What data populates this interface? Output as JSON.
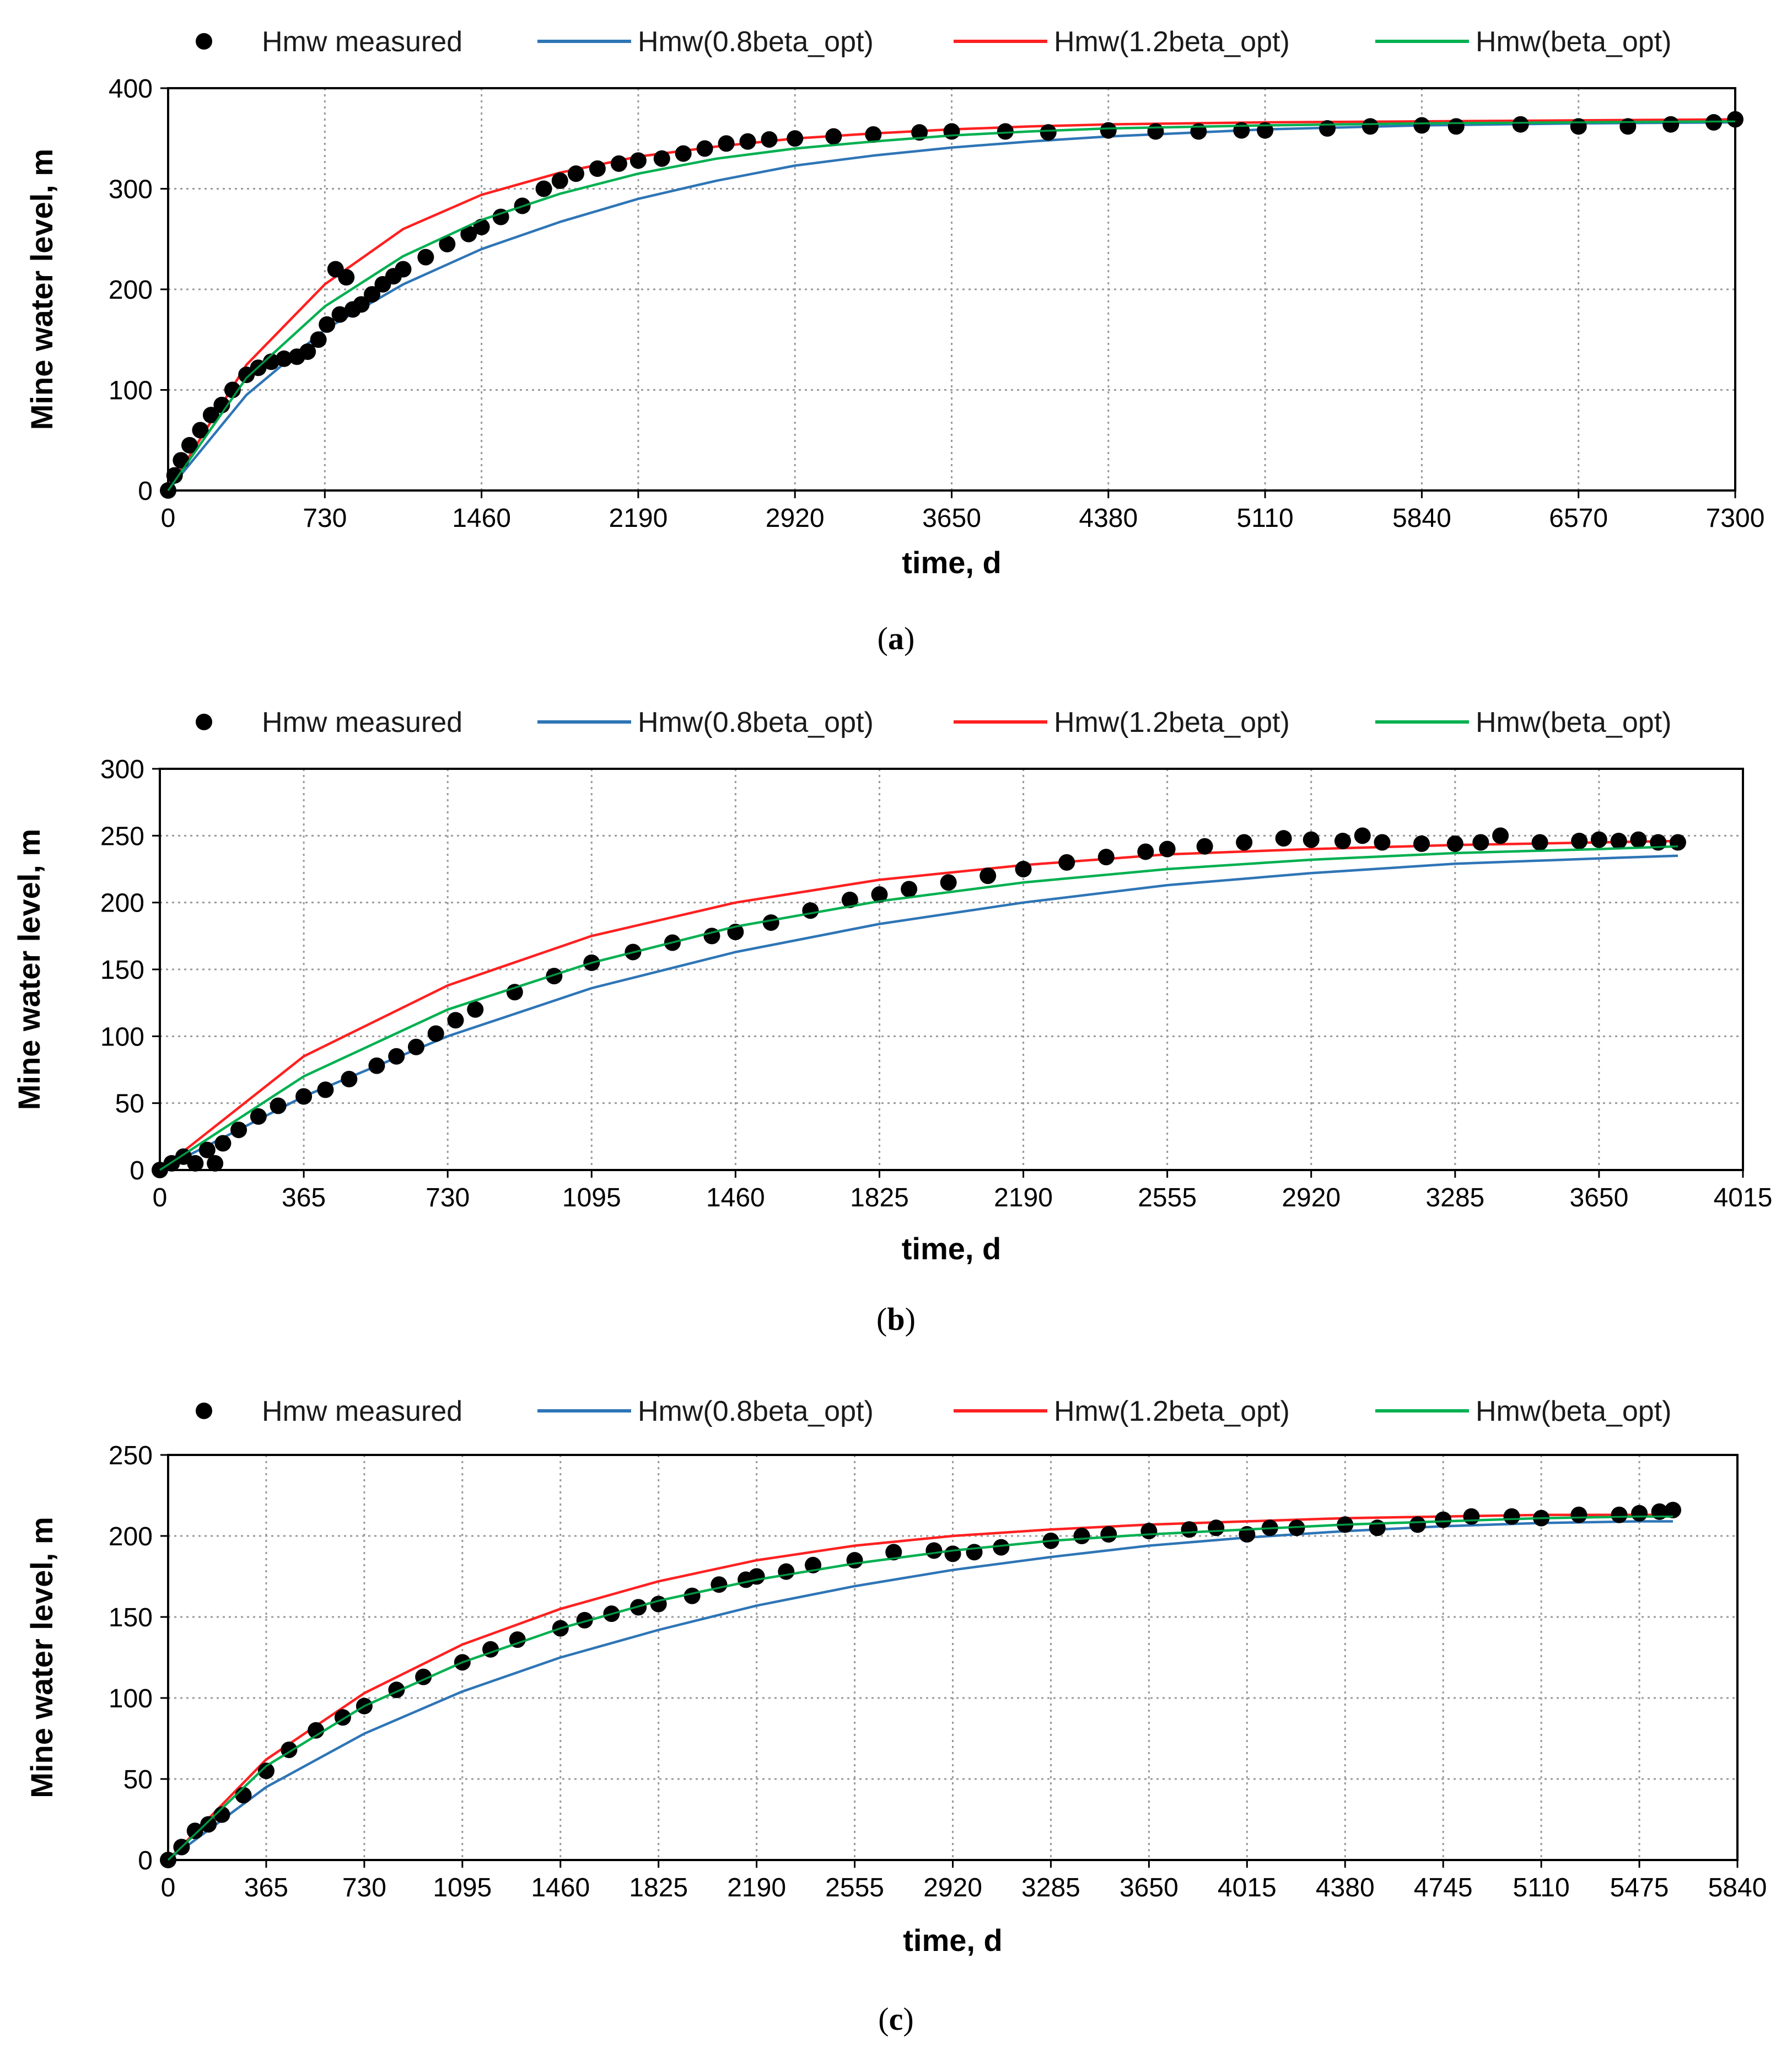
{
  "chart_data": [
    {
      "id": "a",
      "type": "line",
      "caption": "a",
      "xlabel": "time, d",
      "ylabel": "Mine water level, m",
      "xlim": [
        0,
        7300
      ],
      "ylim": [
        0,
        400
      ],
      "xticks": [
        0,
        730,
        1460,
        2190,
        2920,
        3650,
        4380,
        5110,
        5840,
        6570,
        7300
      ],
      "yticks": [
        0,
        100,
        200,
        300,
        400
      ],
      "legend": [
        "Hmw measured",
        "Hmw(0.8beta_opt)",
        "Hmw(1.2beta_opt)",
        "Hmw(beta_opt)"
      ],
      "series": [
        {
          "name": "Hmw(0.8beta_opt)",
          "color": "#2e75b6",
          "x": [
            0,
            365,
            730,
            1095,
            1460,
            1825,
            2190,
            2555,
            2920,
            3285,
            3650,
            4015,
            4380,
            5110,
            5840,
            6570,
            7300
          ],
          "y": [
            0,
            95,
            160,
            205,
            240,
            267,
            290,
            308,
            323,
            333,
            341,
            347,
            352,
            359,
            363,
            365,
            366
          ]
        },
        {
          "name": "Hmw(1.2beta_opt)",
          "color": "#ff2020",
          "x": [
            0,
            365,
            730,
            1095,
            1460,
            1825,
            2190,
            2555,
            2920,
            3285,
            3650,
            4015,
            4380,
            5110,
            5840,
            6570,
            7300
          ],
          "y": [
            0,
            125,
            205,
            260,
            294,
            316,
            332,
            342,
            350,
            355,
            359,
            362,
            364,
            366,
            367,
            368,
            369
          ]
        },
        {
          "name": "Hmw(beta_opt)",
          "color": "#00b050",
          "x": [
            0,
            365,
            730,
            1095,
            1460,
            1825,
            2190,
            2555,
            2920,
            3285,
            3650,
            4015,
            4380,
            5110,
            5840,
            6570,
            7300
          ],
          "y": [
            0,
            112,
            183,
            233,
            269,
            295,
            315,
            330,
            340,
            347,
            353,
            357,
            360,
            363,
            365,
            366,
            367
          ]
        }
      ],
      "measured": {
        "name": "Hmw measured",
        "color": "#000000",
        "x": [
          0,
          30,
          60,
          100,
          150,
          200,
          250,
          300,
          365,
          420,
          480,
          540,
          600,
          650,
          700,
          740,
          780,
          800,
          830,
          860,
          900,
          950,
          1000,
          1050,
          1095,
          1200,
          1300,
          1400,
          1460,
          1550,
          1650,
          1750,
          1825,
          1900,
          2000,
          2100,
          2190,
          2300,
          2400,
          2500,
          2600,
          2700,
          2800,
          2920,
          3100,
          3285,
          3500,
          3650,
          3900,
          4100,
          4380,
          4600,
          4800,
          5000,
          5110,
          5400,
          5600,
          5840,
          6000,
          6300,
          6570,
          6800,
          7000,
          7200,
          7300
        ],
        "y": [
          0,
          15,
          30,
          45,
          60,
          75,
          85,
          100,
          115,
          122,
          128,
          131,
          133,
          138,
          150,
          165,
          220,
          175,
          212,
          180,
          185,
          195,
          205,
          213,
          220,
          232,
          245,
          255,
          262,
          272,
          283,
          300,
          308,
          315,
          320,
          325,
          328,
          330,
          335,
          340,
          345,
          347,
          349,
          350,
          352,
          354,
          356,
          357,
          357,
          356,
          358,
          357,
          357,
          358,
          358,
          360,
          362,
          363,
          362,
          364,
          362,
          362,
          364,
          366,
          369
        ]
      }
    },
    {
      "id": "b",
      "type": "line",
      "caption": "b",
      "xlabel": "time, d",
      "ylabel": "Mine water level, m",
      "xlim": [
        0,
        4015
      ],
      "ylim": [
        0,
        300
      ],
      "xticks": [
        0,
        365,
        730,
        1095,
        1460,
        1825,
        2190,
        2555,
        2920,
        3285,
        3650,
        4015
      ],
      "yticks": [
        0,
        50,
        100,
        150,
        200,
        250,
        300
      ],
      "legend": [
        "Hmw measured",
        "Hmw(0.8beta_opt)",
        "Hmw(1.2beta_opt)",
        "Hmw(beta_opt)"
      ],
      "series": [
        {
          "name": "Hmw(0.8beta_opt)",
          "color": "#2e75b6",
          "x": [
            0,
            365,
            730,
            1095,
            1460,
            1825,
            2190,
            2555,
            2920,
            3285,
            3650,
            3850
          ],
          "y": [
            0,
            55,
            100,
            136,
            163,
            184,
            200,
            213,
            222,
            229,
            233,
            235
          ]
        },
        {
          "name": "Hmw(1.2beta_opt)",
          "color": "#ff2020",
          "x": [
            0,
            365,
            730,
            1095,
            1460,
            1825,
            2190,
            2555,
            2920,
            3285,
            3650,
            3850
          ],
          "y": [
            0,
            85,
            138,
            175,
            200,
            217,
            228,
            236,
            240,
            243,
            245,
            246
          ]
        },
        {
          "name": "Hmw(beta_opt)",
          "color": "#00b050",
          "x": [
            0,
            365,
            730,
            1095,
            1460,
            1825,
            2190,
            2555,
            2920,
            3285,
            3650,
            3850
          ],
          "y": [
            0,
            70,
            120,
            155,
            182,
            201,
            215,
            225,
            232,
            237,
            240,
            242
          ]
        }
      ],
      "measured": {
        "name": "Hmw measured",
        "color": "#000000",
        "x": [
          0,
          30,
          60,
          90,
          120,
          140,
          160,
          200,
          250,
          300,
          365,
          420,
          480,
          550,
          600,
          650,
          700,
          750,
          800,
          900,
          1000,
          1095,
          1200,
          1300,
          1400,
          1460,
          1550,
          1650,
          1750,
          1825,
          1900,
          2000,
          2100,
          2190,
          2300,
          2400,
          2500,
          2555,
          2650,
          2750,
          2850,
          2920,
          3000,
          3050,
          3100,
          3200,
          3285,
          3350,
          3400,
          3500,
          3600,
          3650,
          3700,
          3750,
          3800,
          3850
        ],
        "y": [
          0,
          5,
          10,
          5,
          15,
          5,
          20,
          30,
          40,
          48,
          55,
          60,
          68,
          78,
          85,
          92,
          102,
          112,
          120,
          133,
          145,
          155,
          163,
          170,
          175,
          178,
          185,
          194,
          202,
          206,
          210,
          215,
          220,
          225,
          230,
          234,
          238,
          240,
          242,
          245,
          248,
          247,
          246,
          250,
          245,
          244,
          244,
          245,
          250,
          245,
          246,
          247,
          246,
          247,
          245,
          245
        ]
      }
    },
    {
      "id": "c",
      "type": "line",
      "caption": "c",
      "xlabel": "time, d",
      "ylabel": "Mine water level, m",
      "xlim": [
        0,
        5840
      ],
      "ylim": [
        0,
        250
      ],
      "xticks": [
        0,
        365,
        730,
        1095,
        1460,
        1825,
        2190,
        2555,
        2920,
        3285,
        3650,
        4015,
        4380,
        4745,
        5110,
        5475,
        5840
      ],
      "yticks": [
        0,
        50,
        100,
        150,
        200,
        250
      ],
      "legend": [
        "Hmw measured",
        "Hmw(0.8beta_opt)",
        "Hmw(1.2beta_opt)",
        "Hmw(beta_opt)"
      ],
      "series": [
        {
          "name": "Hmw(0.8beta_opt)",
          "color": "#2e75b6",
          "x": [
            0,
            365,
            730,
            1095,
            1460,
            1825,
            2190,
            2555,
            2920,
            3285,
            3650,
            4015,
            4380,
            4745,
            5110,
            5475,
            5600
          ],
          "y": [
            0,
            45,
            78,
            104,
            125,
            142,
            157,
            169,
            179,
            187,
            194,
            199,
            203,
            206,
            208,
            209,
            209
          ]
        },
        {
          "name": "Hmw(1.2beta_opt)",
          "color": "#ff2020",
          "x": [
            0,
            365,
            730,
            1095,
            1460,
            1825,
            2190,
            2555,
            2920,
            3285,
            3650,
            4015,
            4380,
            4745,
            5110,
            5475,
            5600
          ],
          "y": [
            0,
            62,
            103,
            133,
            155,
            172,
            185,
            194,
            200,
            204,
            207,
            209,
            211,
            212,
            213,
            213,
            213
          ]
        },
        {
          "name": "Hmw(beta_opt)",
          "color": "#00b050",
          "x": [
            0,
            365,
            730,
            1095,
            1460,
            1825,
            2190,
            2555,
            2920,
            3285,
            3650,
            4015,
            4380,
            4745,
            5110,
            5475,
            5600
          ],
          "y": [
            0,
            58,
            95,
            122,
            143,
            160,
            173,
            183,
            191,
            197,
            201,
            204,
            207,
            209,
            211,
            212,
            212
          ]
        }
      ],
      "measured": {
        "name": "Hmw measured",
        "color": "#000000",
        "x": [
          0,
          50,
          100,
          150,
          200,
          280,
          365,
          450,
          550,
          650,
          730,
          850,
          950,
          1095,
          1200,
          1300,
          1460,
          1550,
          1650,
          1750,
          1825,
          1950,
          2050,
          2150,
          2190,
          2300,
          2400,
          2555,
          2700,
          2850,
          2920,
          3000,
          3100,
          3285,
          3400,
          3500,
          3650,
          3800,
          3900,
          4015,
          4100,
          4200,
          4380,
          4500,
          4650,
          4745,
          4850,
          5000,
          5110,
          5250,
          5400,
          5475,
          5550,
          5600
        ],
        "y": [
          0,
          8,
          18,
          22,
          28,
          40,
          55,
          68,
          80,
          88,
          95,
          105,
          113,
          122,
          130,
          136,
          143,
          148,
          152,
          156,
          158,
          163,
          170,
          173,
          175,
          178,
          182,
          185,
          190,
          191,
          189,
          190,
          193,
          197,
          200,
          201,
          203,
          204,
          205,
          201,
          205,
          205,
          207,
          205,
          207,
          210,
          212,
          212,
          211,
          213,
          213,
          214,
          215,
          216
        ]
      }
    }
  ]
}
